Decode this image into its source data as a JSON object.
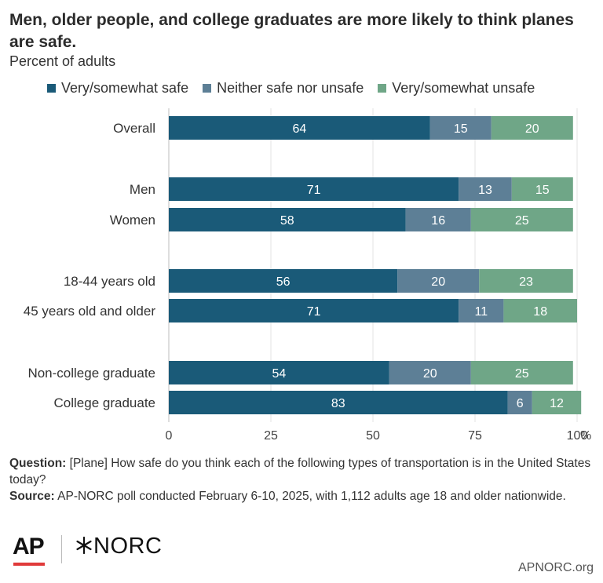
{
  "title": "Men, older people, and college graduates are more likely to think planes are safe.",
  "subtitle": "Percent of adults",
  "legend": [
    {
      "label": "Very/somewhat safe",
      "color": "#1a5a78"
    },
    {
      "label": "Neither safe nor unsafe",
      "color": "#5d7f96"
    },
    {
      "label": "Very/somewhat unsafe",
      "color": "#6fa687"
    }
  ],
  "chart_data": {
    "type": "bar",
    "orientation": "horizontal",
    "stacked": true,
    "categories": [
      "Overall",
      "Men",
      "Women",
      "18-44 years old",
      "45 years old and older",
      "Non-college graduate",
      "College graduate"
    ],
    "series": [
      {
        "name": "Very/somewhat safe",
        "color": "#1a5a78",
        "values": [
          64,
          71,
          58,
          56,
          71,
          54,
          83
        ]
      },
      {
        "name": "Neither safe nor unsafe",
        "color": "#5d7f96",
        "values": [
          15,
          13,
          16,
          20,
          11,
          20,
          6
        ]
      },
      {
        "name": "Very/somewhat unsafe",
        "color": "#6fa687",
        "values": [
          20,
          15,
          25,
          23,
          18,
          25,
          12
        ]
      }
    ],
    "xlim": [
      0,
      100
    ],
    "x_ticks": [
      "0",
      "25",
      "50",
      "75",
      "100"
    ],
    "x_unit": "%",
    "grid": true,
    "legend_position": "top"
  },
  "footer": {
    "question_label": "Question:",
    "question_text": "[Plane] How safe do you think each of the following types of transportation is in the United States today?",
    "source_label": "Source:",
    "source_text": "AP-NORC poll conducted February 6-10, 2025, with 1,112 adults age 18 and older nationwide."
  },
  "logos": {
    "ap": "AP",
    "norc": "NORC"
  },
  "site_url": "APNORC.org"
}
